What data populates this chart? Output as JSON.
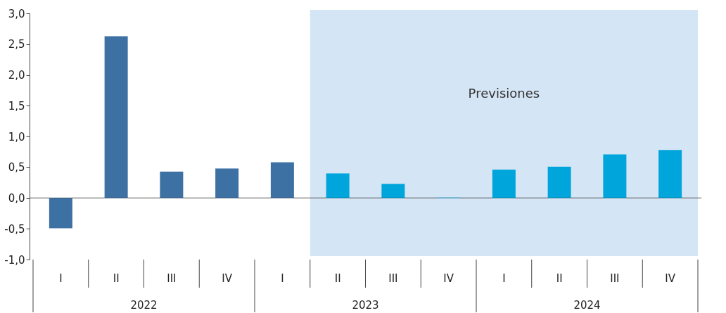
{
  "chart_data": {
    "type": "bar",
    "categories": [
      "I",
      "II",
      "III",
      "IV",
      "I",
      "II",
      "III",
      "IV",
      "I",
      "II",
      "III",
      "IV"
    ],
    "series": [
      {
        "values": [
          -0.49,
          2.63,
          0.43,
          0.48,
          0.58,
          0.4,
          0.23,
          0.01,
          0.46,
          0.51,
          0.71,
          0.78
        ],
        "colors": [
          "#3d70a3",
          "#3d70a3",
          "#3d70a3",
          "#3d70a3",
          "#3d70a3",
          "#00a5dc",
          "#00a5dc",
          "#00a5dc",
          "#00a5dc",
          "#00a5dc",
          "#00a5dc",
          "#00a5dc"
        ]
      }
    ],
    "ylim": [
      -1,
      3
    ],
    "yticks": [
      {
        "value": -1,
        "label": "-1,0"
      },
      {
        "value": -0.5,
        "label": "-0,5"
      },
      {
        "value": 0,
        "label": "0,0"
      },
      {
        "value": 0.5,
        "label": "0,5"
      },
      {
        "value": 1,
        "label": "1,0"
      },
      {
        "value": 1.5,
        "label": "1,5"
      },
      {
        "value": 2,
        "label": "2,0"
      },
      {
        "value": 2.5,
        "label": "2,5"
      },
      {
        "value": 3,
        "label": "3,0"
      }
    ],
    "annotations": [
      "2022",
      "2023",
      "2024",
      "Previsiones"
    ]
  }
}
